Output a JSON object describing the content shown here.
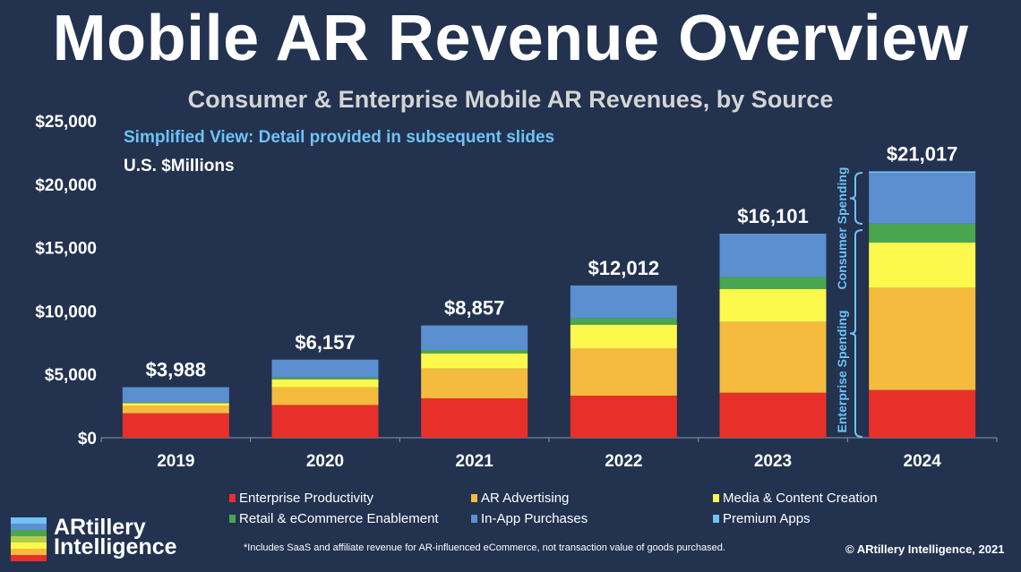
{
  "title": "Mobile AR Revenue Overview",
  "subtitle": "Consumer & Enterprise Mobile AR Revenues, by Source",
  "note_detail": "Simplified View: Detail provided in subsequent slides",
  "units": "U.S. $Millions",
  "brackets": {
    "consumer": "Consumer Spending",
    "enterprise": "Enterprise Spending"
  },
  "footnote": "*Includes SaaS and affiliate revenue for AR-influenced eCommerce, not transaction value of goods purchased.",
  "copyright": "© ARtillery Intelligence, 2021",
  "logo_text": [
    "ARtillery",
    "Intelligence"
  ],
  "chart_data": {
    "type": "bar",
    "stacked": true,
    "categories": [
      "2019",
      "2020",
      "2021",
      "2022",
      "2023",
      "2024"
    ],
    "ylim": [
      0,
      25000
    ],
    "yticks": [
      "$0",
      "$5,000",
      "$10,000",
      "$15,000",
      "$20,000",
      "$25,000"
    ],
    "ytick_values": [
      0,
      5000,
      10000,
      15000,
      20000,
      25000
    ],
    "totals": [
      "$3,988",
      "$6,157",
      "$8,857",
      "$12,012",
      "$16,101",
      "$21,017"
    ],
    "legend_position": "bottom",
    "series": [
      {
        "name": "Enterprise Productivity",
        "color": "#e8302a",
        "values": [
          1930,
          2585,
          3107,
          3319,
          3552,
          3764
        ]
      },
      {
        "name": "AR Advertising",
        "color": "#f4bb3f",
        "values": [
          610,
          1390,
          2352,
          3715,
          5601,
          8072
        ]
      },
      {
        "name": "Media & Content Creation",
        "color": "#fdf84c",
        "values": [
          190,
          636,
          1201,
          1885,
          2570,
          3559
        ]
      },
      {
        "name": "Retail & eCommerce Enablement",
        "color": "#4aa551",
        "values": [
          50,
          141,
          261,
          516,
          961,
          1505
        ]
      },
      {
        "name": "In-App Purchases",
        "color": "#5b8fd0",
        "values": [
          1188,
          1385,
          1916,
          2557,
          3397,
          4004
        ]
      },
      {
        "name": "Premium Apps",
        "color": "#6fc3f5",
        "values": [
          20,
          20,
          20,
          20,
          20,
          113
        ]
      }
    ]
  }
}
